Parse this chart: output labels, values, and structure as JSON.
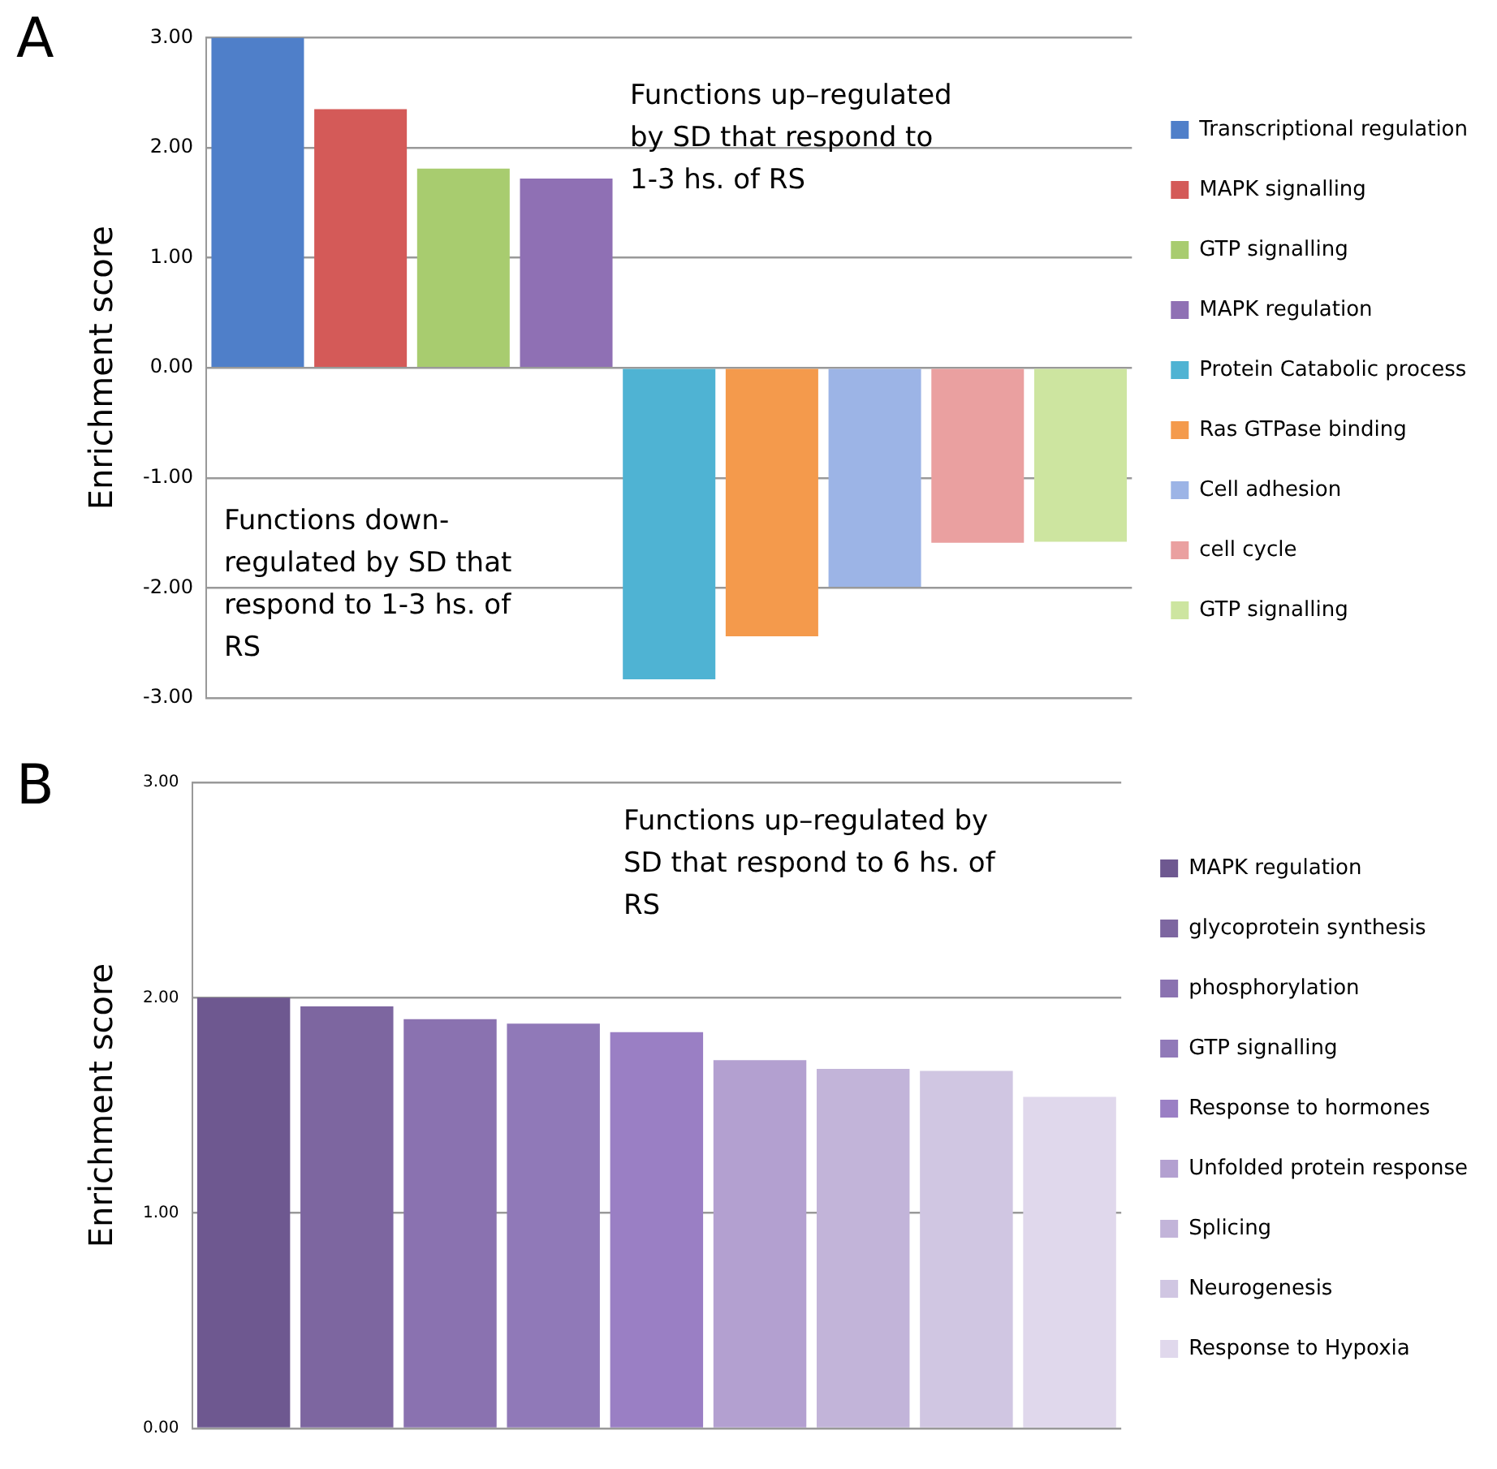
{
  "chart_data": [
    {
      "type": "bar",
      "title": "A",
      "ylabel": "Enrichment score",
      "categories": [
        null,
        null,
        null,
        null,
        null,
        null,
        null,
        null,
        null
      ],
      "series": [
        {
          "name": "Transcriptional regulation",
          "color": "#4f7fc9",
          "values": [
            3.0,
            null,
            null,
            null,
            null,
            null,
            null,
            null,
            null
          ]
        },
        {
          "name": "MAPK signalling",
          "color": "#d45a58",
          "values": [
            null,
            2.35,
            null,
            null,
            null,
            null,
            null,
            null,
            null
          ]
        },
        {
          "name": "GTP signalling",
          "color": "#a8cc6f",
          "values": [
            null,
            null,
            1.81,
            null,
            null,
            null,
            null,
            null,
            null
          ]
        },
        {
          "name": "MAPK regulation",
          "color": "#8f70b4",
          "values": [
            null,
            null,
            null,
            1.72,
            null,
            null,
            null,
            null,
            null
          ]
        },
        {
          "name": "Protein Catabolic process",
          "color": "#4fb3d3",
          "values": [
            null,
            null,
            null,
            null,
            -2.83,
            null,
            null,
            null,
            null
          ]
        },
        {
          "name": "Ras GTPase binding",
          "color": "#f49a4c",
          "values": [
            null,
            null,
            null,
            null,
            null,
            -2.44,
            null,
            null,
            null
          ]
        },
        {
          "name": "Cell adhesion",
          "color": "#9cb4e6",
          "values": [
            null,
            null,
            null,
            null,
            null,
            null,
            -1.99,
            null,
            null
          ]
        },
        {
          "name": "cell cycle",
          "color": "#eaa0a0",
          "values": [
            null,
            null,
            null,
            null,
            null,
            null,
            null,
            -1.59,
            null
          ]
        },
        {
          "name": "GTP signalling",
          "color": "#cde5a0",
          "values": [
            null,
            null,
            null,
            null,
            null,
            null,
            null,
            null,
            -1.58
          ]
        }
      ],
      "ylim": [
        -3,
        3
      ],
      "yticks": [
        {
          "value": -3,
          "label": "-3.00"
        },
        {
          "value": -2,
          "label": "-2.00"
        },
        {
          "value": -1,
          "label": "-1.00"
        },
        {
          "value": 0,
          "label": "0.00"
        },
        {
          "value": 1,
          "label": "1.00"
        },
        {
          "value": 2,
          "label": "2.00"
        },
        {
          "value": 3,
          "label": "3.00"
        }
      ],
      "grid": "y",
      "legend": "right",
      "tick_labels": "y",
      "annotations": [
        "Functions up–regulated by SD that respond to 1-3 hs. of RS",
        "Functions down-regulated by SD that respond to 1-3 hs. of RS"
      ]
    },
    {
      "type": "bar",
      "title": "B",
      "ylabel": "Enrichment score",
      "categories": [
        null,
        null,
        null,
        null,
        null,
        null,
        null,
        null,
        null
      ],
      "series": [
        {
          "name": "MAPK regulation",
          "color": "#6e5890",
          "values": [
            2.0,
            null,
            null,
            null,
            null,
            null,
            null,
            null,
            null
          ]
        },
        {
          "name": "glycoprotein synthesis",
          "color": "#7d66a0",
          "values": [
            null,
            1.96,
            null,
            null,
            null,
            null,
            null,
            null,
            null
          ]
        },
        {
          "name": "phosphorylation",
          "color": "#8a72b0",
          "values": [
            null,
            null,
            1.9,
            null,
            null,
            null,
            null,
            null,
            null
          ]
        },
        {
          "name": "GTP signalling",
          "color": "#9079b8",
          "values": [
            null,
            null,
            null,
            1.88,
            null,
            null,
            null,
            null,
            null
          ]
        },
        {
          "name": "Response to hormones",
          "color": "#9a7fc4",
          "values": [
            null,
            null,
            null,
            null,
            1.84,
            null,
            null,
            null,
            null
          ]
        },
        {
          "name": "Unfolded protein response",
          "color": "#b3a0d0",
          "values": [
            null,
            null,
            null,
            null,
            null,
            1.71,
            null,
            null,
            null
          ]
        },
        {
          "name": "Splicing",
          "color": "#c2b4d9",
          "values": [
            null,
            null,
            null,
            null,
            null,
            null,
            1.67,
            null,
            null
          ]
        },
        {
          "name": "Neurogenesis",
          "color": "#d0c6e2",
          "values": [
            null,
            null,
            null,
            null,
            null,
            null,
            null,
            1.66,
            null
          ]
        },
        {
          "name": "Response to Hypoxia",
          "color": "#e0d8ec",
          "values": [
            null,
            null,
            null,
            null,
            null,
            null,
            null,
            null,
            1.54
          ]
        }
      ],
      "ylim": [
        0,
        3
      ],
      "yticks": [
        {
          "value": 0,
          "label": "0.00"
        },
        {
          "value": 1,
          "label": "1.00"
        },
        {
          "value": 2,
          "label": "2.00"
        },
        {
          "value": 3,
          "label": "3.00"
        }
      ],
      "grid": "y",
      "legend": "right",
      "tick_labels": "y",
      "annotations": [
        "Functions up–regulated by SD that respond to 6 hs. of RS"
      ]
    }
  ]
}
